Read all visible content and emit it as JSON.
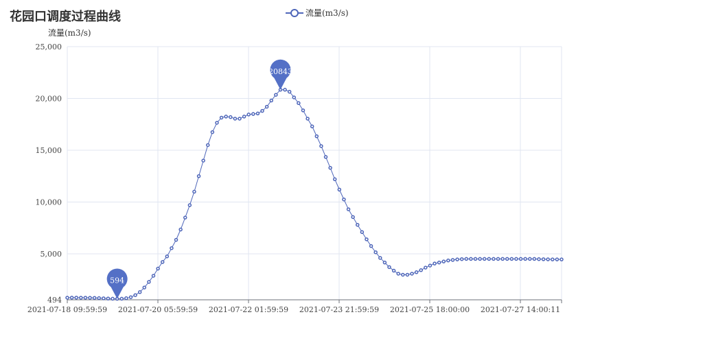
{
  "title": "花园口调度过程曲线",
  "legend": {
    "label": "流量(m3/s)"
  },
  "y_axis_name": "流量(m3/s)",
  "colors": {
    "series": "#4e66b9",
    "grid": "#e0e6f1",
    "axis": "#6e7079",
    "marker": "#5470c6"
  },
  "chart_data": {
    "type": "line",
    "x_tick_labels": [
      "2021-07-18 09:59:59",
      "2021-07-20 05:59:59",
      "2021-07-22 01:59:59",
      "2021-07-23 21:59:59",
      "2021-07-25 18:00:00",
      "2021-07-27 14:00:11"
    ],
    "y_tick_labels": [
      "494",
      "5,000",
      "10,000",
      "15,000",
      "20,000",
      "25,000"
    ],
    "ylim": [
      494,
      25000
    ],
    "grid": true,
    "legend_position": "top-center",
    "series": [
      {
        "name": "流量(m3/s)",
        "values": [
          700,
          705,
          705,
          700,
          700,
          690,
          680,
          660,
          640,
          620,
          600,
          594,
          600,
          650,
          750,
          950,
          1250,
          1700,
          2250,
          2850,
          3550,
          4200,
          4750,
          5550,
          6350,
          7350,
          8500,
          9700,
          11000,
          12500,
          14000,
          15500,
          16750,
          17650,
          18150,
          18250,
          18200,
          18050,
          18050,
          18250,
          18450,
          18500,
          18550,
          18800,
          19200,
          19800,
          20350,
          20843,
          20843,
          20650,
          20100,
          19550,
          18850,
          18050,
          17300,
          16350,
          15400,
          14350,
          13300,
          12200,
          11200,
          10250,
          9300,
          8550,
          7800,
          7100,
          6400,
          5750,
          5150,
          4600,
          4150,
          3700,
          3350,
          3050,
          2950,
          2950,
          3050,
          3200,
          3400,
          3650,
          3850,
          4050,
          4150,
          4250,
          4350,
          4400,
          4450,
          4480,
          4500,
          4500,
          4500,
          4500,
          4500,
          4500,
          4500,
          4500,
          4500,
          4500,
          4500,
          4500,
          4500,
          4500,
          4500,
          4500,
          4480,
          4470,
          4460,
          4450,
          4450,
          4450
        ]
      }
    ],
    "markers": [
      {
        "label": "594",
        "value": 594,
        "index": 11
      },
      {
        "label": "20843",
        "value": 20843,
        "index": 47
      }
    ]
  }
}
